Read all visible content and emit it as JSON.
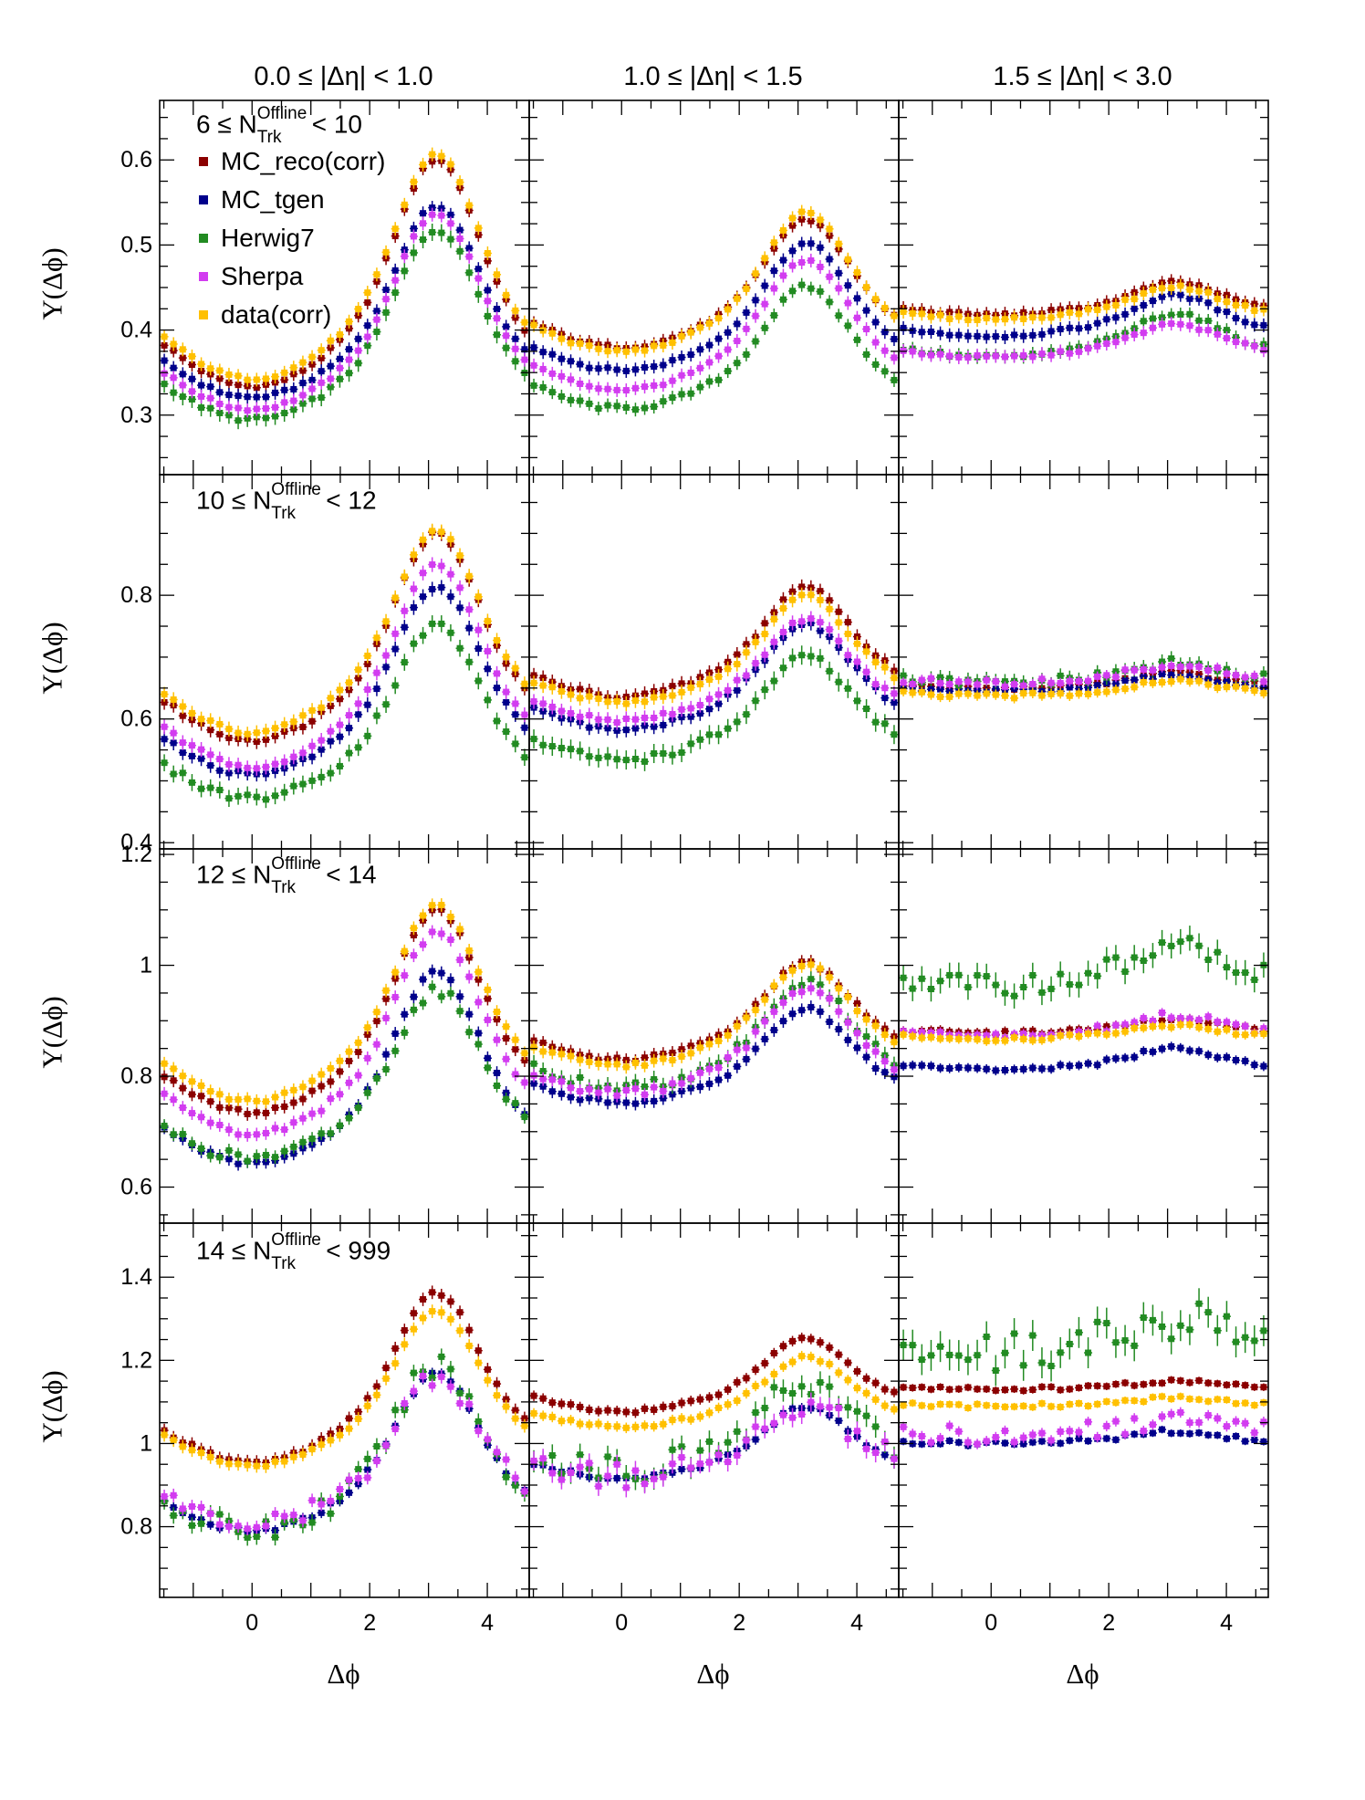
{
  "panel_titles": [
    "0.0 ≤ |Δη| < 1.0",
    "1.0 ≤ |Δη| < 1.5",
    "1.5 ≤ |Δη| < 3.0"
  ],
  "ylabel": "Y(Δϕ)",
  "xlabel": "Δϕ",
  "multiplicity_bins": [
    {
      "pre": "6 ≤ N",
      "sup": "Offline",
      "sub": "Trk",
      "post": "< 10"
    },
    {
      "pre": "10 ≤ N",
      "sup": "Offline",
      "sub": "Trk",
      "post": "< 12"
    },
    {
      "pre": "12 ≤ N",
      "sup": "Offline",
      "sub": "Trk",
      "post": "< 14"
    },
    {
      "pre": "14 ≤ N",
      "sup": "Offline",
      "sub": "Trk",
      "post": "< 999"
    }
  ],
  "legend": [
    {
      "label": "MC_reco(corr)",
      "color": "#8b0000"
    },
    {
      "label": "MC_tgen",
      "color": "#00008b"
    },
    {
      "label": "Herwig7",
      "color": "#228b22"
    },
    {
      "label": "Sherpa",
      "color": "#d23cf0"
    },
    {
      "label": "data(corr)",
      "color": "#ffc000"
    }
  ],
  "chart_data": {
    "type": "scatter",
    "xlim": [
      -1.5708,
      4.7124
    ],
    "xticks": [
      0,
      2,
      4
    ],
    "grid": false,
    "legend_position": "top-left",
    "series_names": [
      "MC_reco(corr)",
      "MC_tgen",
      "Herwig7",
      "Sherpa",
      "data(corr)"
    ],
    "series_colors": [
      "#8b0000",
      "#00008b",
      "#228b22",
      "#d23cf0",
      "#ffc000"
    ],
    "nbins": 40,
    "rows": [
      {
        "ylim": [
          0.23,
          0.67
        ],
        "yticks": [
          0.3,
          0.4,
          0.5,
          0.6
        ],
        "ytick_labels": [
          "0.3",
          "0.4",
          "0.5",
          "0.6"
        ],
        "panels": [
          {
            "series": [
              [
                0.334,
                0.601,
                0.02,
                0.002
              ],
              [
                0.321,
                0.546,
                0.02,
                0.002
              ],
              [
                0.295,
                0.518,
                0.026,
                0.003
              ],
              [
                0.307,
                0.537,
                0.02,
                0.002
              ],
              [
                0.343,
                0.607,
                0.02,
                0.002
              ]
            ]
          },
          {
            "series": [
              [
                0.38,
                0.53,
                0.02,
                0.002
              ],
              [
                0.353,
                0.502,
                0.02,
                0.002
              ],
              [
                0.308,
                0.451,
                0.02,
                0.003
              ],
              [
                0.33,
                0.482,
                0.02,
                0.002
              ],
              [
                0.375,
                0.538,
                0.02,
                0.002
              ]
            ]
          },
          {
            "series": [
              [
                0.418,
                0.456,
                0.02,
                0.002
              ],
              [
                0.393,
                0.441,
                0.02,
                0.002
              ],
              [
                0.368,
                0.42,
                0.02,
                0.003
              ],
              [
                0.368,
                0.407,
                0.02,
                0.002
              ],
              [
                0.413,
                0.451,
                0.02,
                0.002
              ]
            ]
          }
        ]
      },
      {
        "ylim": [
          0.39,
          0.995
        ],
        "yticks": [
          0.4,
          0.6,
          0.8
        ],
        "ytick_labels": [
          "0.4",
          "0.6",
          "0.8"
        ],
        "panels": [
          {
            "series": [
              [
                0.567,
                0.902,
                0.03,
                0.004
              ],
              [
                0.511,
                0.815,
                0.03,
                0.004
              ],
              [
                0.473,
                0.752,
                0.035,
                0.006
              ],
              [
                0.524,
                0.85,
                0.03,
                0.004
              ],
              [
                0.579,
                0.905,
                0.03,
                0.004
              ]
            ]
          },
          {
            "series": [
              [
                0.637,
                0.814,
                0.03,
                0.004
              ],
              [
                0.585,
                0.753,
                0.03,
                0.004
              ],
              [
                0.535,
                0.7,
                0.04,
                0.007
              ],
              [
                0.598,
                0.762,
                0.03,
                0.004
              ],
              [
                0.628,
                0.798,
                0.03,
                0.004
              ]
            ]
          },
          {
            "series": [
              [
                0.65,
                0.675,
                0.02,
                0.004
              ],
              [
                0.645,
                0.67,
                0.02,
                0.004
              ],
              [
                0.658,
                0.69,
                0.03,
                0.008
              ],
              [
                0.657,
                0.687,
                0.02,
                0.006
              ],
              [
                0.637,
                0.663,
                0.02,
                0.004
              ]
            ]
          }
        ]
      },
      {
        "ylim": [
          0.535,
          1.21
        ],
        "yticks": [
          0.6,
          0.8,
          1.0,
          1.2
        ],
        "ytick_labels": [
          "0.6",
          "0.8",
          "1",
          "1.2"
        ],
        "panels": [
          {
            "series": [
              [
                0.735,
                1.1,
                0.03,
                0.004
              ],
              [
                0.643,
                0.99,
                0.03,
                0.004
              ],
              [
                0.652,
                0.955,
                0.03,
                0.01
              ],
              [
                0.696,
                1.06,
                0.03,
                0.006
              ],
              [
                0.756,
                1.108,
                0.03,
                0.004
              ]
            ]
          },
          {
            "series": [
              [
                0.83,
                1.005,
                0.03,
                0.004
              ],
              [
                0.753,
                0.922,
                0.03,
                0.004
              ],
              [
                0.78,
                0.97,
                0.04,
                0.01
              ],
              [
                0.77,
                0.96,
                0.03,
                0.007
              ],
              [
                0.82,
                1.0,
                0.03,
                0.004
              ]
            ]
          },
          {
            "series": [
              [
                0.878,
                0.902,
                0.02,
                0.004
              ],
              [
                0.812,
                0.85,
                0.02,
                0.004
              ],
              [
                0.962,
                1.04,
                0.06,
                0.02
              ],
              [
                0.872,
                0.91,
                0.02,
                0.007
              ],
              [
                0.867,
                0.892,
                0.02,
                0.004
              ]
            ]
          }
        ]
      },
      {
        "ylim": [
          0.63,
          1.53
        ],
        "yticks": [
          0.8,
          1.0,
          1.2,
          1.4
        ],
        "ytick_labels": [
          "0.8",
          "1",
          "1.2",
          "1.4"
        ],
        "panels": [
          {
            "series": [
              [
                0.955,
                1.362,
                0.04,
                0.005
              ],
              [
                0.79,
                1.17,
                0.03,
                0.006
              ],
              [
                0.79,
                1.19,
                0.05,
                0.03
              ],
              [
                0.805,
                1.165,
                0.04,
                0.025
              ],
              [
                0.948,
                1.32,
                0.04,
                0.005
              ]
            ]
          },
          {
            "series": [
              [
                1.078,
                1.255,
                0.03,
                0.005
              ],
              [
                0.917,
                1.09,
                0.03,
                0.006
              ],
              [
                0.94,
                1.15,
                0.07,
                0.035
              ],
              [
                0.92,
                1.1,
                0.06,
                0.03
              ],
              [
                1.04,
                1.208,
                0.03,
                0.005
              ]
            ]
          },
          {
            "series": [
              [
                1.13,
                1.15,
                0.02,
                0.005
              ],
              [
                1.0,
                1.03,
                0.02,
                0.006
              ],
              [
                1.22,
                1.3,
                0.1,
                0.05
              ],
              [
                1.02,
                1.05,
                0.03,
                0.025
              ],
              [
                1.09,
                1.11,
                0.02,
                0.005
              ]
            ]
          }
        ]
      }
    ]
  }
}
